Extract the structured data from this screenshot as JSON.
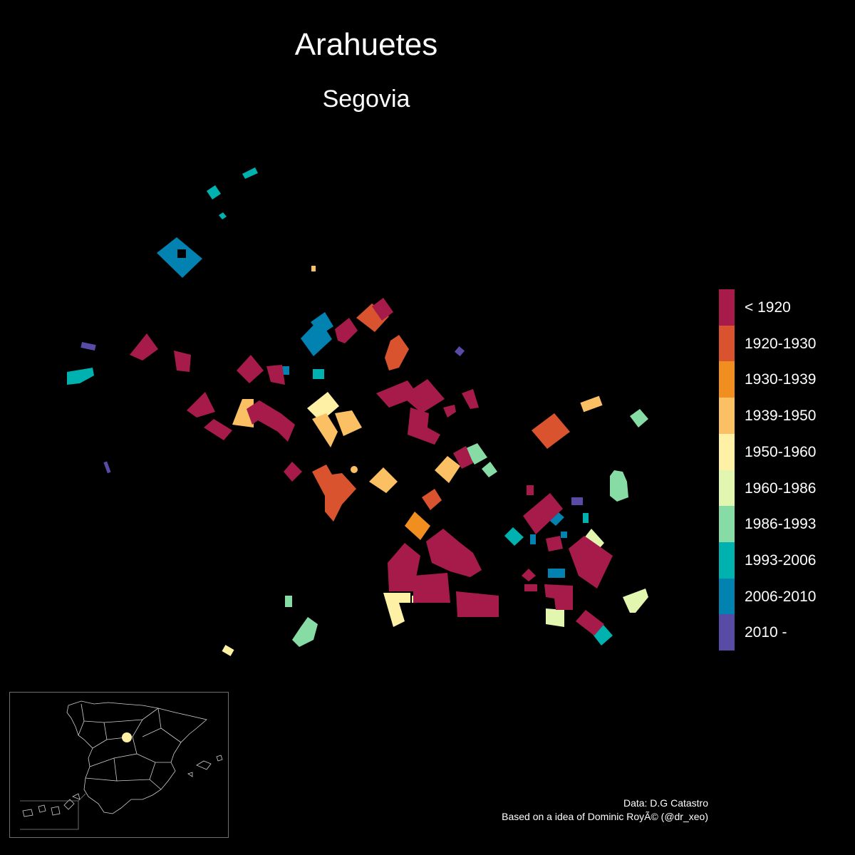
{
  "title": "Arahuetes",
  "subtitle": "Segovia",
  "legend": {
    "items": [
      {
        "label": "< 1920",
        "color": "#a71b4b"
      },
      {
        "label": "1920-1930",
        "color": "#d9532f"
      },
      {
        "label": "1930-1939",
        "color": "#f08e1f"
      },
      {
        "label": "1939-1950",
        "color": "#fbc064"
      },
      {
        "label": "1950-1960",
        "color": "#fef0a5"
      },
      {
        "label": "1960-1986",
        "color": "#e3f6b0"
      },
      {
        "label": "1986-1993",
        "color": "#87dba5"
      },
      {
        "label": "1993-2006",
        "color": "#00b2af"
      },
      {
        "label": "2006-2010",
        "color": "#0182b0"
      },
      {
        "label": "2010 -",
        "color": "#584ba6"
      }
    ]
  },
  "caption": {
    "source": "Data: D.G Catastro",
    "credit": "Based on a idea of Dominic RoyÃ© (@dr_xeo)"
  },
  "inset": {
    "region": "Spain",
    "marker_color": "#fef0a5"
  }
}
